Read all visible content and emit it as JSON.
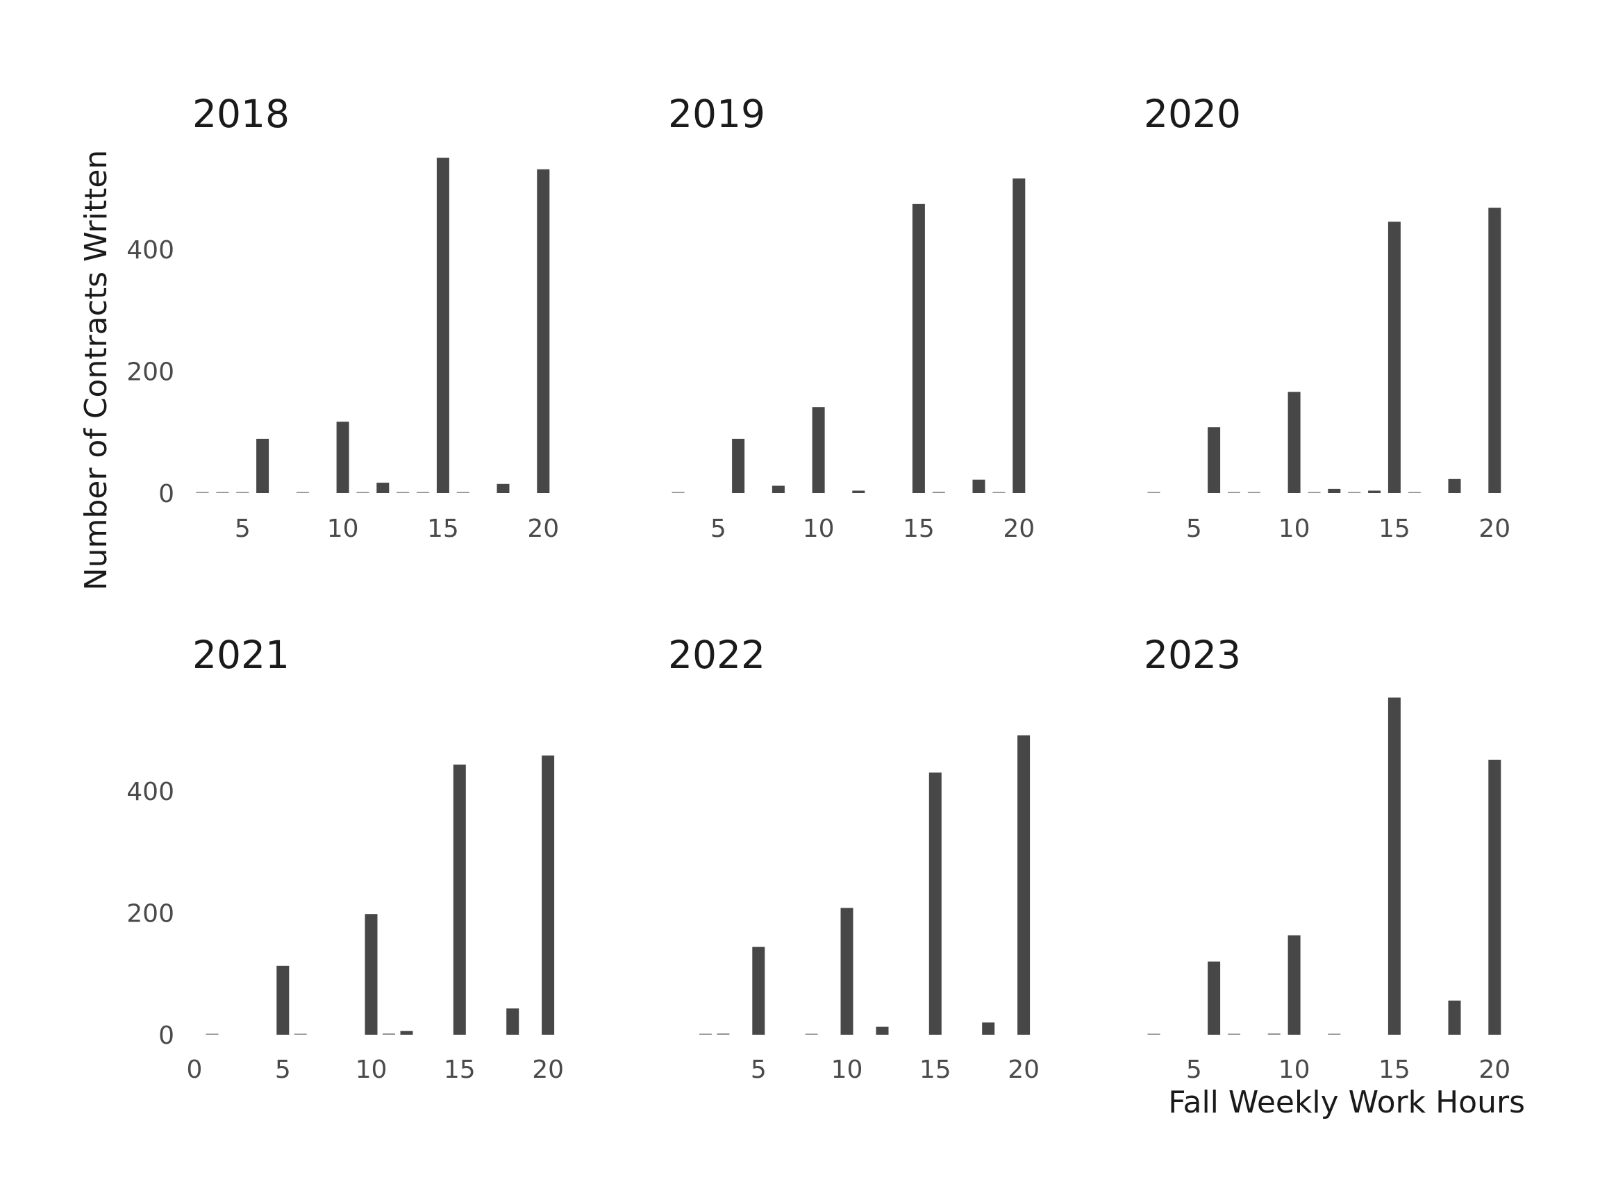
{
  "chart_data": {
    "type": "bar",
    "xlabel": "Fall Weekly Work Hours",
    "ylabel": "Number of Contracts Written",
    "bar_color": "#474747",
    "background": "#ffffff",
    "grid": false,
    "facets": [
      {
        "title": "2018",
        "xlim": [
          2.6,
          22
        ],
        "xticks": [
          5,
          10,
          15,
          20
        ],
        "yticks": [
          0,
          200,
          400
        ],
        "ylim": [
          0,
          560
        ],
        "bars": [
          [
            3,
            1
          ],
          [
            4,
            1
          ],
          [
            5,
            1
          ],
          [
            6,
            89
          ],
          [
            8,
            1
          ],
          [
            10,
            117
          ],
          [
            11,
            1
          ],
          [
            12,
            17
          ],
          [
            13,
            1
          ],
          [
            14,
            1
          ],
          [
            15,
            550
          ],
          [
            16,
            1
          ],
          [
            18,
            15
          ],
          [
            20,
            531
          ]
        ]
      },
      {
        "title": "2019",
        "xlim": [
          2.6,
          22
        ],
        "xticks": [
          5,
          10,
          15,
          20
        ],
        "yticks": [
          0,
          200,
          400
        ],
        "ylim": [
          0,
          560
        ],
        "bars": [
          [
            3,
            1
          ],
          [
            6,
            89
          ],
          [
            8,
            12
          ],
          [
            10,
            141
          ],
          [
            12,
            4
          ],
          [
            15,
            474
          ],
          [
            16,
            2
          ],
          [
            18,
            22
          ],
          [
            19,
            1
          ],
          [
            20,
            516
          ]
        ]
      },
      {
        "title": "2020",
        "xlim": [
          2.6,
          22
        ],
        "xticks": [
          5,
          10,
          15,
          20
        ],
        "yticks": [
          0,
          200,
          400
        ],
        "ylim": [
          0,
          560
        ],
        "bars": [
          [
            3,
            1
          ],
          [
            6,
            108
          ],
          [
            7,
            1
          ],
          [
            8,
            1
          ],
          [
            10,
            166
          ],
          [
            11,
            1
          ],
          [
            12,
            7
          ],
          [
            13,
            1
          ],
          [
            14,
            4
          ],
          [
            15,
            445
          ],
          [
            16,
            1
          ],
          [
            18,
            23
          ],
          [
            20,
            468
          ]
        ]
      },
      {
        "title": "2021",
        "xlim": [
          0,
          22
        ],
        "xticks": [
          0,
          5,
          10,
          15,
          20
        ],
        "yticks": [
          0,
          200,
          400
        ],
        "ylim": [
          0,
          560
        ],
        "bars": [
          [
            1,
            1
          ],
          [
            5,
            113
          ],
          [
            6,
            1
          ],
          [
            10,
            198
          ],
          [
            11,
            2
          ],
          [
            12,
            6
          ],
          [
            15,
            443
          ],
          [
            18,
            43
          ],
          [
            20,
            458
          ]
        ]
      },
      {
        "title": "2022",
        "xlim": [
          0,
          22
        ],
        "xticks": [
          5,
          10,
          15,
          20
        ],
        "yticks": [
          0,
          200,
          400
        ],
        "ylim": [
          0,
          560
        ],
        "bars": [
          [
            2,
            1
          ],
          [
            3,
            2
          ],
          [
            5,
            144
          ],
          [
            8,
            1
          ],
          [
            10,
            208
          ],
          [
            12,
            13
          ],
          [
            15,
            430
          ],
          [
            18,
            20
          ],
          [
            20,
            491
          ]
        ]
      },
      {
        "title": "2023",
        "xlim": [
          2.6,
          22
        ],
        "xticks": [
          5,
          10,
          15,
          20
        ],
        "yticks": [
          0,
          200,
          400
        ],
        "ylim": [
          0,
          560
        ],
        "bars": [
          [
            3,
            1
          ],
          [
            6,
            120
          ],
          [
            7,
            1
          ],
          [
            9,
            2
          ],
          [
            10,
            163
          ],
          [
            12,
            1
          ],
          [
            15,
            553
          ],
          [
            18,
            56
          ],
          [
            20,
            451
          ]
        ]
      }
    ]
  }
}
